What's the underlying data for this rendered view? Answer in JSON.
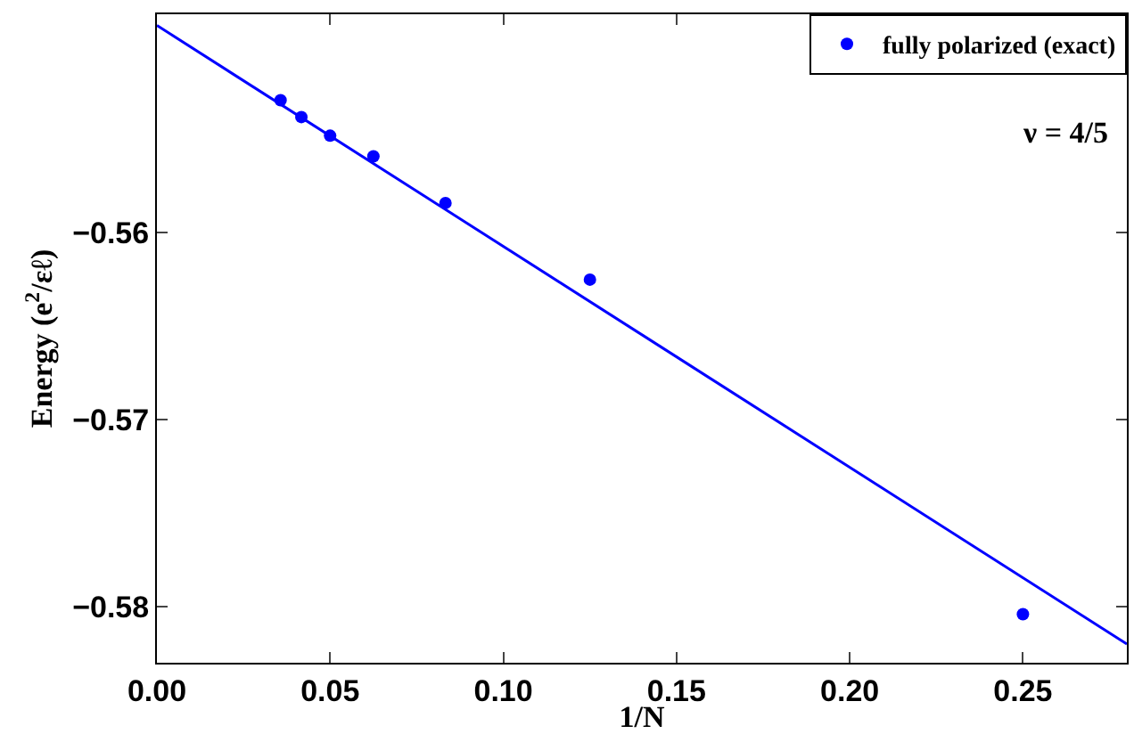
{
  "chart_data": {
    "type": "scatter",
    "xlabel": "1/N",
    "ylabel": "Energy (e$^{2}$/εℓ)",
    "annotations": [
      "ν = 4/5"
    ],
    "series": [
      {
        "name": "fully polarized (exact)",
        "color": "#0000ff",
        "marker": "circle",
        "x": [
          0.0357,
          0.0417,
          0.05,
          0.0625,
          0.0833,
          0.125,
          0.25
        ],
        "values": [
          -0.5529,
          -0.5538,
          -0.5548,
          -0.5559,
          -0.5584,
          -0.5625,
          -0.5804
        ]
      },
      {
        "color": "#0000ff",
        "type": "line",
        "marker": "none",
        "x": [
          0,
          0.28
        ],
        "values": [
          -0.5489,
          -0.582
        ]
      }
    ],
    "xlim": [
      0,
      0.28
    ],
    "ylim": [
      -0.583,
      -0.5483
    ],
    "xticks": [
      {
        "value": 0,
        "label": "0.00"
      },
      {
        "value": 0.05,
        "label": "0.05"
      },
      {
        "value": 0.1,
        "label": "0.10"
      },
      {
        "value": 0.15,
        "label": "0.15"
      },
      {
        "value": 0.2,
        "label": "0.20"
      },
      {
        "value": 0.25,
        "label": "0.25"
      }
    ],
    "yticks": [
      -0.58,
      -0.57,
      -0.56
    ],
    "legend": "top right"
  }
}
